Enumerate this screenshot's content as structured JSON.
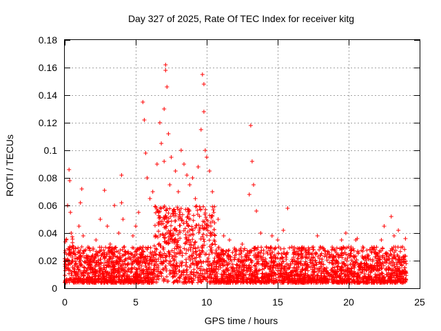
{
  "chart_data": {
    "type": "scatter",
    "title": "Day 327 of 2025, Rate Of TEC Index for receiver kitg",
    "xlabel": "GPS time / hours",
    "ylabel": "ROTI / TECUs",
    "xlim": [
      0,
      25
    ],
    "ylim": [
      0,
      0.18
    ],
    "xticks": [
      "0",
      "5",
      "10",
      "15",
      "20",
      "25"
    ],
    "yticks": [
      "0",
      "0.02",
      "0.04",
      "0.06",
      "0.08",
      "0.1",
      "0.12",
      "0.14",
      "0.16",
      "0.18"
    ],
    "xtick_values": [
      0,
      5,
      10,
      15,
      20,
      25
    ],
    "ytick_values": [
      0,
      0.02,
      0.04,
      0.06,
      0.08,
      0.1,
      0.12,
      0.14,
      0.16,
      0.18
    ],
    "grid": true,
    "marker": "+",
    "color": "#ff0000",
    "series": [
      {
        "name": "ROTI",
        "x": [
          0.1,
          0.2,
          0.3,
          0.35,
          0.4,
          0.4,
          0.45,
          0.5,
          0.5,
          0.6,
          0.8,
          1.0,
          1.1,
          1.2,
          1.2,
          1.3,
          1.5,
          1.7,
          2.0,
          2.2,
          2.5,
          2.8,
          3.0,
          3.0,
          3.2,
          3.5,
          3.8,
          4.0,
          4.0,
          4.1,
          4.2,
          4.5,
          4.8,
          5.0,
          5.2,
          5.5,
          5.6,
          5.7,
          5.8,
          6.0,
          6.2,
          6.5,
          6.7,
          6.8,
          7.0,
          7.0,
          7.1,
          7.1,
          7.2,
          7.3,
          7.4,
          7.5,
          7.8,
          8.0,
          8.2,
          8.4,
          8.6,
          8.8,
          9.0,
          9.2,
          9.4,
          9.6,
          9.7,
          9.8,
          9.8,
          9.9,
          10.0,
          10.2,
          10.4,
          10.5,
          10.8,
          11.2,
          11.6,
          12.0,
          12.5,
          13.0,
          13.1,
          13.2,
          13.3,
          13.5,
          13.8,
          14.2,
          14.6,
          15.0,
          15.4,
          15.7,
          16.0,
          16.5,
          17.0,
          17.5,
          17.8,
          18.0,
          18.5,
          19.0,
          19.5,
          19.8,
          20.0,
          20.5,
          20.6,
          21.0,
          21.5,
          22.0,
          22.3,
          22.5,
          23.0,
          23.2,
          23.5,
          23.8,
          24.0
        ],
        "y": [
          0.035,
          0.06,
          0.086,
          0.078,
          0.055,
          0.025,
          0.04,
          0.02,
          0.012,
          0.03,
          0.018,
          0.045,
          0.062,
          0.072,
          0.03,
          0.038,
          0.022,
          0.015,
          0.028,
          0.035,
          0.05,
          0.071,
          0.045,
          0.02,
          0.032,
          0.06,
          0.04,
          0.082,
          0.062,
          0.05,
          0.03,
          0.025,
          0.038,
          0.045,
          0.055,
          0.135,
          0.122,
          0.098,
          0.08,
          0.065,
          0.07,
          0.09,
          0.12,
          0.105,
          0.13,
          0.092,
          0.162,
          0.158,
          0.146,
          0.112,
          0.075,
          0.095,
          0.085,
          0.07,
          0.1,
          0.09,
          0.082,
          0.075,
          0.08,
          0.065,
          0.088,
          0.115,
          0.155,
          0.148,
          0.128,
          0.1,
          0.095,
          0.085,
          0.07,
          0.055,
          0.05,
          0.038,
          0.035,
          0.028,
          0.032,
          0.068,
          0.118,
          0.092,
          0.075,
          0.056,
          0.04,
          0.03,
          0.038,
          0.035,
          0.042,
          0.058,
          0.03,
          0.025,
          0.028,
          0.022,
          0.038,
          0.03,
          0.025,
          0.028,
          0.035,
          0.04,
          0.03,
          0.035,
          0.036,
          0.03,
          0.028,
          0.025,
          0.035,
          0.045,
          0.052,
          0.038,
          0.042,
          0.03,
          0.036
        ]
      }
    ],
    "background_band": "dense ROTI scatter between ~0.005 and ~0.03 TECU/min across 0-24 h, enhanced (up to ~0.06) between ~6 and ~10.5 h"
  }
}
